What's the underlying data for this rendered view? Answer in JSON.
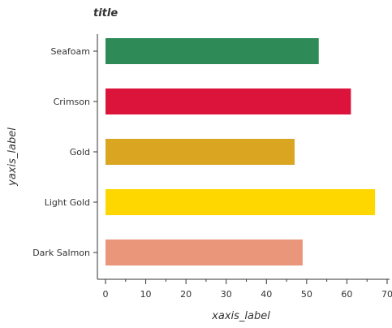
{
  "chart_data": {
    "type": "bar",
    "orientation": "horizontal",
    "title": "title",
    "xlabel": "xaxis_label",
    "ylabel": "yaxis_label",
    "categories": [
      "Seafoam",
      "Crimson",
      "Gold",
      "Light Gold",
      "Dark Salmon"
    ],
    "values": [
      53,
      61,
      47,
      67,
      49
    ],
    "colors": [
      "#2e8b57",
      "#dc143c",
      "#daa520",
      "#ffd700",
      "#e9967a"
    ],
    "xlim": [
      0,
      70
    ],
    "xticks": [
      0,
      10,
      20,
      30,
      40,
      50,
      60,
      70
    ],
    "grid": false,
    "legend": "none"
  }
}
